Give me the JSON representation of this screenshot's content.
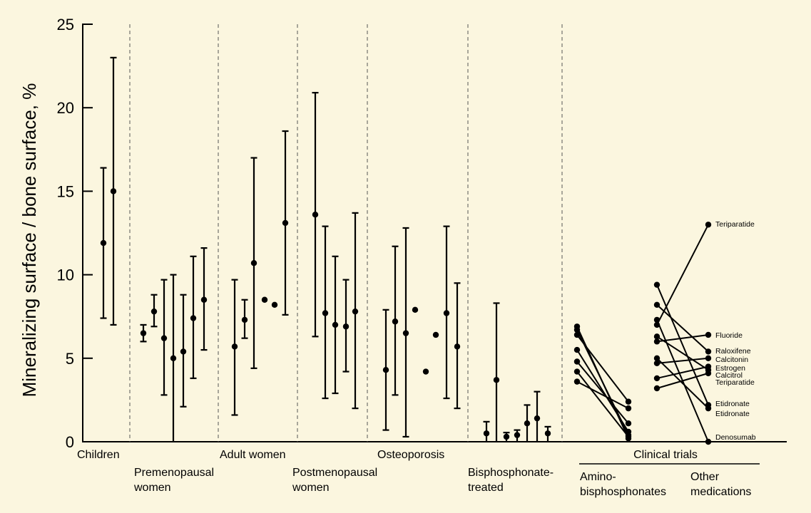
{
  "colors": {
    "background": "#fbf6df",
    "ink": "#000000",
    "separator": "#555555"
  },
  "chart_data": {
    "type": "scatter",
    "title": "",
    "xlabel": "",
    "ylabel": "Mineralizing surface / bone surface, %",
    "ylim": [
      0,
      25
    ],
    "yticks": [
      "0",
      "5",
      "10",
      "15",
      "20",
      "25"
    ],
    "grid": false,
    "error_bar_groups": [
      {
        "name": "Children",
        "points": [
          {
            "y": 11.9,
            "lo": 7.4,
            "hi": 16.4
          },
          {
            "y": 15.0,
            "lo": 7.0,
            "hi": 23.0
          }
        ]
      },
      {
        "name": "Premenopausal women",
        "points": [
          {
            "y": 6.5,
            "lo": 6.0,
            "hi": 7.0
          },
          {
            "y": 7.8,
            "lo": 6.9,
            "hi": 8.8
          },
          {
            "y": 6.2,
            "lo": 2.8,
            "hi": 9.7
          },
          {
            "y": 5.0,
            "lo": 0.0,
            "hi": 10.0
          },
          {
            "y": 5.4,
            "lo": 2.1,
            "hi": 8.8
          },
          {
            "y": 7.4,
            "lo": 3.8,
            "hi": 11.1
          },
          {
            "y": 8.5,
            "lo": 5.5,
            "hi": 11.6
          }
        ]
      },
      {
        "name": "Adult women",
        "points": [
          {
            "y": 5.7,
            "lo": 1.6,
            "hi": 9.7
          },
          {
            "y": 7.3,
            "lo": 6.2,
            "hi": 8.5
          },
          {
            "y": 10.7,
            "lo": 4.4,
            "hi": 17.0
          },
          {
            "y": 8.5
          },
          {
            "y": 8.2
          },
          {
            "y": 13.1,
            "lo": 7.6,
            "hi": 18.6
          }
        ]
      },
      {
        "name": "Postmenopausal women",
        "points": [
          {
            "y": 13.6,
            "lo": 6.3,
            "hi": 20.9
          },
          {
            "y": 7.7,
            "lo": 2.6,
            "hi": 12.9
          },
          {
            "y": 7.0,
            "lo": 2.9,
            "hi": 11.1
          },
          {
            "y": 6.9,
            "lo": 4.2,
            "hi": 9.7
          },
          {
            "y": 7.8,
            "lo": 2.0,
            "hi": 13.7
          }
        ]
      },
      {
        "name": "Osteoporosis",
        "points": [
          {
            "y": 4.3,
            "lo": 0.7,
            "hi": 7.9
          },
          {
            "y": 7.2,
            "lo": 2.8,
            "hi": 11.7
          },
          {
            "y": 6.5,
            "lo": 0.3,
            "hi": 12.8
          },
          {
            "y": 7.9
          },
          {
            "y": 4.2
          },
          {
            "y": 6.4
          },
          {
            "y": 7.7,
            "lo": 2.6,
            "hi": 12.9
          },
          {
            "y": 5.7,
            "lo": 2.0,
            "hi": 9.5
          }
        ]
      },
      {
        "name": "Bisphosphonate-treated",
        "points": [
          {
            "y": 0.5,
            "lo": 0.0,
            "hi": 1.2
          },
          {
            "y": 3.7,
            "lo": 0.0,
            "hi": 8.3
          },
          {
            "y": 0.3,
            "lo": 0.0,
            "hi": 0.55
          },
          {
            "y": 0.4,
            "lo": 0.0,
            "hi": 0.7
          },
          {
            "y": 1.1,
            "lo": 0.0,
            "hi": 2.2
          },
          {
            "y": 1.4,
            "lo": 0.0,
            "hi": 3.0
          },
          {
            "y": 0.5,
            "lo": 0.0,
            "hi": 0.9
          }
        ]
      }
    ],
    "clinical_trials": {
      "label": "Clinical trials",
      "aminobisphosphonates": {
        "label_lines": [
          "Amino-",
          "bisphosphonates"
        ],
        "pairs": [
          {
            "before": 6.9,
            "after": 0.2
          },
          {
            "before": 6.7,
            "after": 0.4
          },
          {
            "before": 6.4,
            "after": 2.4
          },
          {
            "before": 5.5,
            "after": 0.6
          },
          {
            "before": 4.8,
            "after": 1.1
          },
          {
            "before": 4.2,
            "after": 0.3
          },
          {
            "before": 3.6,
            "after": 2.0
          }
        ]
      },
      "other_medications": {
        "label_lines": [
          "Other",
          "medications"
        ],
        "pairs": [
          {
            "before": 7.0,
            "after": 13.0,
            "drug": "Teriparatide"
          },
          {
            "before": 6.0,
            "after": 6.4,
            "drug": "Fluoride"
          },
          {
            "before": 8.2,
            "after": 5.4,
            "drug": "Raloxifene"
          },
          {
            "before": 4.7,
            "after": 5.0,
            "drug": "Calcitonin"
          },
          {
            "before": 3.8,
            "after": 4.5,
            "drug": "Estrogen"
          },
          {
            "before": 6.3,
            "after": 4.3,
            "drug": "Calcitrol"
          },
          {
            "before": 3.2,
            "after": 4.1,
            "drug": "Teriparatide"
          },
          {
            "before": 9.4,
            "after": 2.2,
            "drug": "Etidronate"
          },
          {
            "before": 5.0,
            "after": 2.0,
            "drug": "Etidronate"
          },
          {
            "before": 7.3,
            "after": 0.0,
            "drug": "Denosumab"
          }
        ]
      }
    },
    "x_group_labels": [
      {
        "key": "children",
        "lines": [
          "Children"
        ]
      },
      {
        "key": "premenopausal",
        "lines": [
          "Premenopausal",
          "women"
        ]
      },
      {
        "key": "adult",
        "lines": [
          "Adult women"
        ]
      },
      {
        "key": "postmenopausal",
        "lines": [
          "Postmenopausal",
          "women"
        ]
      },
      {
        "key": "osteoporosis",
        "lines": [
          "Osteoporosis"
        ]
      },
      {
        "key": "bisphosphonate",
        "lines": [
          "Bisphosphonate-",
          "treated"
        ]
      }
    ]
  }
}
